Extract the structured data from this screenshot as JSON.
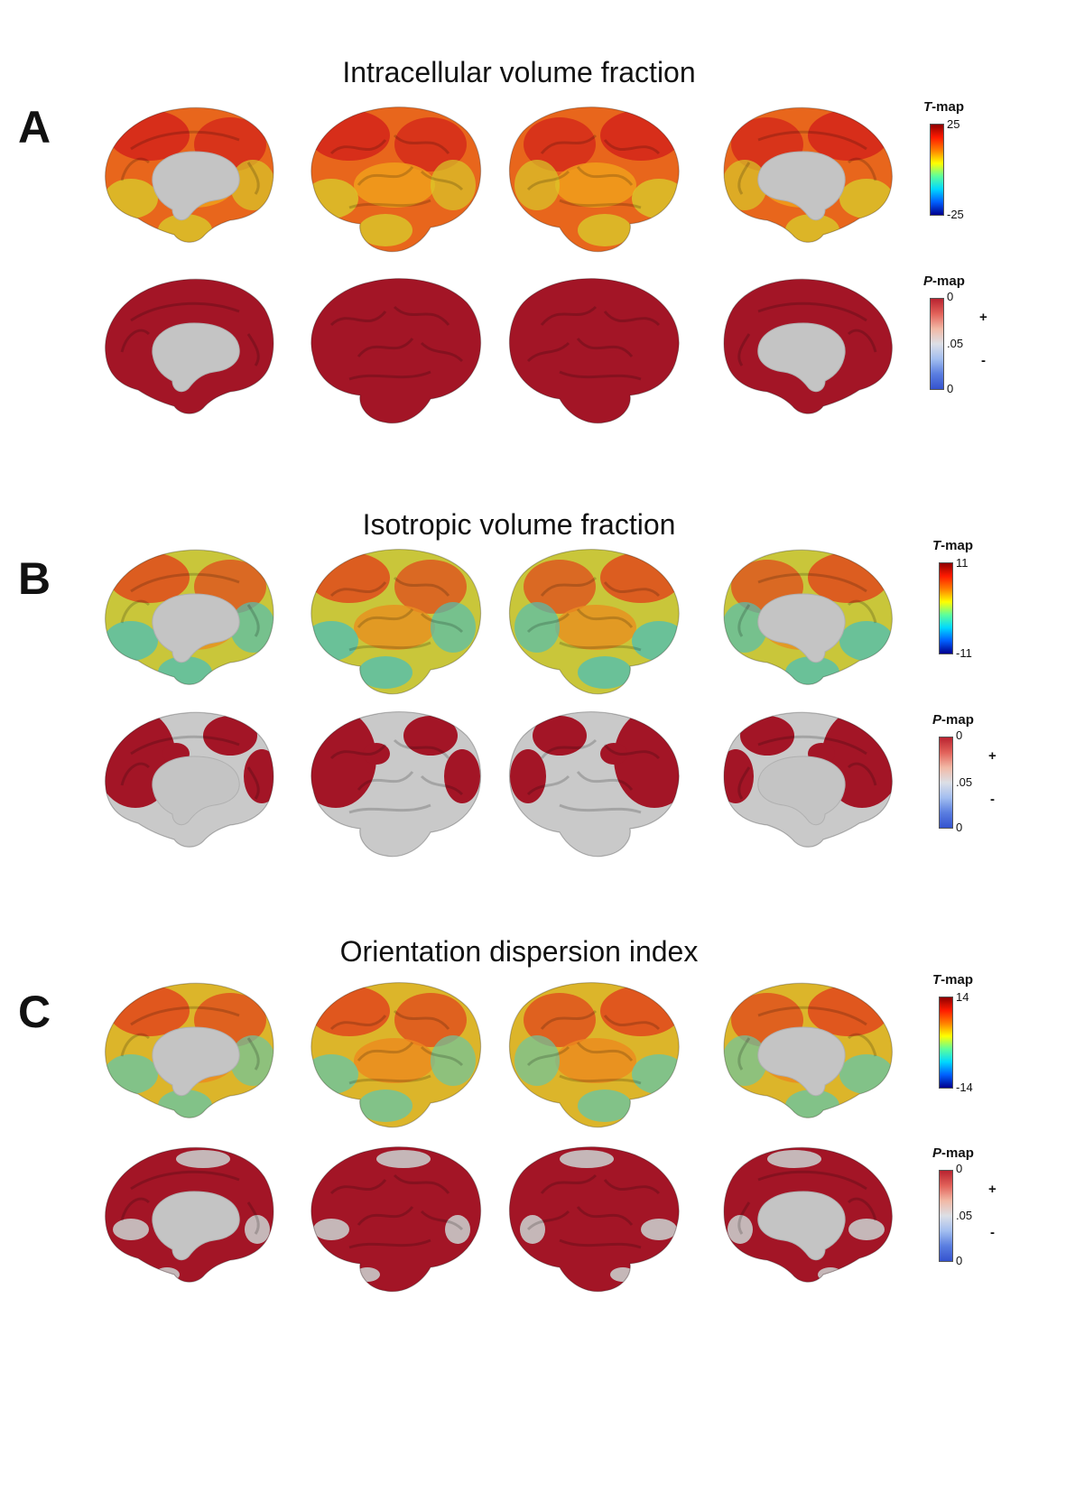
{
  "panels": [
    {
      "letter": "A",
      "title": "Intracellular volume fraction",
      "tmap": {
        "title_italic": "T",
        "title_rest": "-map",
        "max": "25",
        "min": "-25"
      },
      "pmap": {
        "title_italic": "P",
        "title_rest": "-map",
        "top": "0",
        "mid": ".05",
        "bottom": "0",
        "plus": "+",
        "minus": "-"
      },
      "t_row_colors": {
        "base": "#e8661c",
        "hot": "#d3241a",
        "warm": "#f0a21c",
        "cool": "#d8c92a"
      },
      "p_row_coverage": "full"
    },
    {
      "letter": "B",
      "title": "Isotropic volume fraction",
      "tmap": {
        "title_italic": "T",
        "title_rest": "-map",
        "max": "11",
        "min": "-11"
      },
      "pmap": {
        "title_italic": "P",
        "title_rest": "-map",
        "top": "0",
        "mid": ".05",
        "bottom": "0",
        "plus": "+",
        "minus": "-"
      },
      "t_row_colors": {
        "base": "#c9c63a",
        "hot": "#df4a1c",
        "warm": "#e98f1f",
        "cool": "#52bfb0"
      },
      "p_row_coverage": "partial"
    },
    {
      "letter": "C",
      "title": "Orientation dispersion index",
      "tmap": {
        "title_italic": "T",
        "title_rest": "-map",
        "max": "14",
        "min": "-14"
      },
      "pmap": {
        "title_italic": "P",
        "title_rest": "-map",
        "top": "0",
        "mid": ".05",
        "bottom": "0",
        "plus": "+",
        "minus": "-"
      },
      "t_row_colors": {
        "base": "#dcb52a",
        "hot": "#e0461c",
        "warm": "#ec8a1e",
        "cool": "#6cc6a0"
      },
      "p_row_coverage": "mostly"
    }
  ],
  "colors": {
    "significant": "#a31526",
    "nonsignificant": "#c9c9c9",
    "medial_wall": "#c4c4c4",
    "tmap_gradient": [
      "#00008f",
      "#0060ff",
      "#00d8ff",
      "#5cff9c",
      "#ffff00",
      "#ff8000",
      "#ff1a00",
      "#8f0000"
    ],
    "pmap_gradient": [
      "#b92330",
      "#e2625a",
      "#f2b9a6",
      "#dcdfe6",
      "#a3bef0",
      "#5a7ee0",
      "#3553cf"
    ]
  }
}
